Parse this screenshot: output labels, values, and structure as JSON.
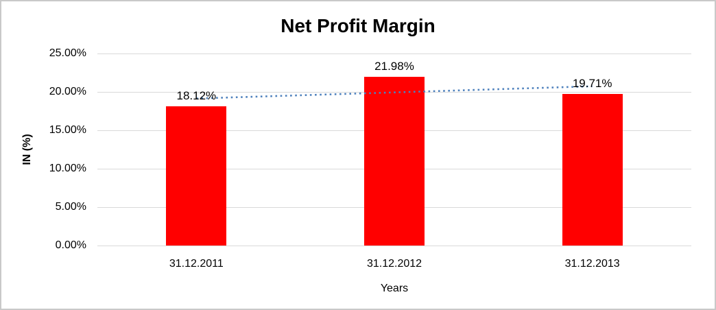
{
  "chart_data": {
    "type": "bar",
    "title": "Net Profit Margin",
    "categories": [
      "31.12.2011",
      "31.12.2012",
      "31.12.2013"
    ],
    "values": [
      18.12,
      21.98,
      19.71
    ],
    "data_labels": [
      "18.12%",
      "21.98%",
      "19.71%"
    ],
    "xlabel": "Years",
    "ylabel": "IN (%)",
    "ylim": [
      0,
      25
    ],
    "yticks": [
      0,
      5,
      10,
      15,
      20,
      25
    ],
    "ytick_labels": [
      "0.00%",
      "5.00%",
      "10.00%",
      "15.00%",
      "20.00%",
      "25.00%"
    ],
    "grid": true,
    "legend": "none",
    "bar_color": "#FF0000",
    "trendline": {
      "type": "linear",
      "style": "dotted",
      "color": "#4E81BD"
    }
  },
  "colors": {
    "grid": "#D9D9D9",
    "axis_line": "#D9D9D9",
    "frame_border": "#C9C9C9",
    "text": "#000000",
    "background": "#FFFFFF"
  }
}
